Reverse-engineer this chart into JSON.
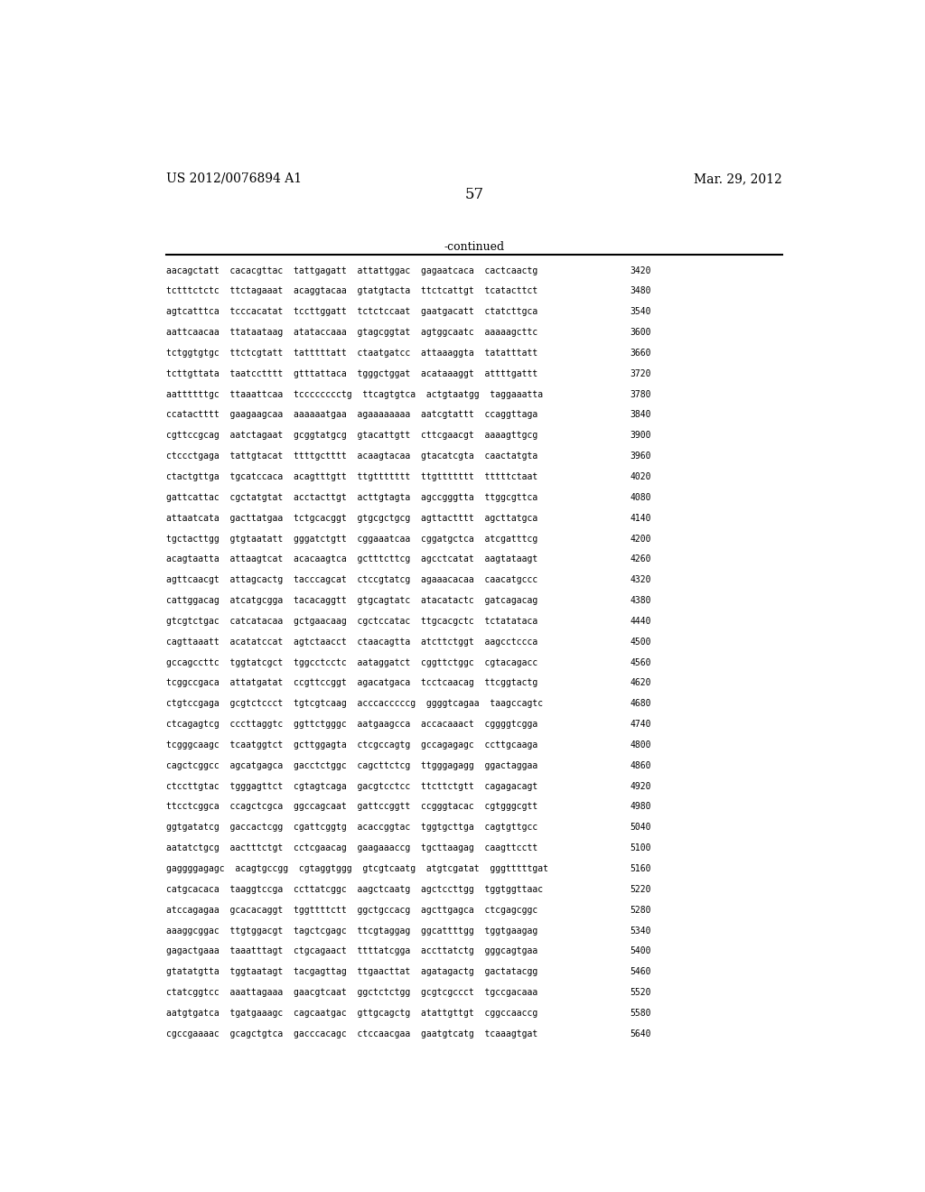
{
  "header_left": "US 2012/0076894 A1",
  "header_right": "Mar. 29, 2012",
  "page_number": "57",
  "continued_label": "-continued",
  "background_color": "#ffffff",
  "text_color": "#000000",
  "sequence_lines": [
    {
      "seq": "aacagctatt  cacacgttac  tattgagatt  attattggac  gagaatcaca  cactcaactg",
      "num": "3420"
    },
    {
      "seq": "tctttctctc  ttctagaaat  acaggtacaa  gtatgtacta  ttctcattgt  tcatacttct",
      "num": "3480"
    },
    {
      "seq": "agtcatttca  tcccacatat  tccttggatt  tctctccaat  gaatgacatt  ctatcttgca",
      "num": "3540"
    },
    {
      "seq": "aattcaacaa  ttataataag  atataccaaa  gtagcggtat  agtggcaatc  aaaaagcttc",
      "num": "3600"
    },
    {
      "seq": "tctggtgtgc  ttctcgtatt  tatttttatt  ctaatgatcc  attaaaggta  tatatttatt",
      "num": "3660"
    },
    {
      "seq": "tcttgttata  taatcctttt  gtttattaca  tgggctggat  acataaaggt  attttgattt",
      "num": "3720"
    },
    {
      "seq": "aattttttgc  ttaaattcaa  tcccccccctg  ttcagtgtca  actgtaatgg  taggaaatta",
      "num": "3780"
    },
    {
      "seq": "ccatactttt  gaagaagcaa  aaaaaatgaa  agaaaaaaaa  aatcgtattt  ccaggttaga",
      "num": "3840"
    },
    {
      "seq": "cgttccgcag  aatctagaat  gcggtatgcg  gtacattgtt  cttcgaacgt  aaaagttgcg",
      "num": "3900"
    },
    {
      "seq": "ctccctgaga  tattgtacat  ttttgctttt  acaagtacaa  gtacatcgta  caactatgta",
      "num": "3960"
    },
    {
      "seq": "ctactgttga  tgcatccaca  acagtttgtt  ttgttttttt  ttgttttttt  tttttctaat",
      "num": "4020"
    },
    {
      "seq": "gattcattac  cgctatgtat  acctacttgt  acttgtagta  agccgggtta  ttggcgttca",
      "num": "4080"
    },
    {
      "seq": "attaatcata  gacttatgaa  tctgcacggt  gtgcgctgcg  agttactttt  agcttatgca",
      "num": "4140"
    },
    {
      "seq": "tgctacttgg  gtgtaatatt  gggatctgtt  cggaaatcaa  cggatgctca  atcgatttcg",
      "num": "4200"
    },
    {
      "seq": "acagtaatta  attaagtcat  acacaagtca  gctttcttcg  agcctcatat  aagtataagt",
      "num": "4260"
    },
    {
      "seq": "agttcaacgt  attagcactg  tacccagcat  ctccgtatcg  agaaacacaa  caacatgccc",
      "num": "4320"
    },
    {
      "seq": "cattggacag  atcatgcgga  tacacaggtt  gtgcagtatc  atacatactc  gatcagacag",
      "num": "4380"
    },
    {
      "seq": "gtcgtctgac  catcatacaa  gctgaacaag  cgctccatac  ttgcacgctc  tctatataca",
      "num": "4440"
    },
    {
      "seq": "cagttaaatt  acatatccat  agtctaacct  ctaacagtta  atcttctggt  aagcctccca",
      "num": "4500"
    },
    {
      "seq": "gccagccttc  tggtatcgct  tggcctcctc  aataggatct  cggttctggc  cgtacagacc",
      "num": "4560"
    },
    {
      "seq": "tcggccgaca  attatgatat  ccgttccggt  agacatgaca  tcctcaacag  ttcggtactg",
      "num": "4620"
    },
    {
      "seq": "ctgtccgaga  gcgtctccct  tgtcgtcaag  acccacccccg  ggggtcagaa  taagccagtc",
      "num": "4680"
    },
    {
      "seq": "ctcagagtcg  cccttaggtc  ggttctgggc  aatgaagcca  accacaaact  cggggtcgga",
      "num": "4740"
    },
    {
      "seq": "tcgggcaagc  tcaatggtct  gcttggagta  ctcgccagtg  gccagagagc  ccttgcaaga",
      "num": "4800"
    },
    {
      "seq": "cagctcggcc  agcatgagca  gacctctggc  cagcttctcg  ttgggagagg  ggactaggaa",
      "num": "4860"
    },
    {
      "seq": "ctccttgtac  tgggagttct  cgtagtcaga  gacgtcctcc  ttcttctgtt  cagagacagt",
      "num": "4920"
    },
    {
      "seq": "ttcctcggca  ccagctcgca  ggccagcaat  gattccggtt  ccgggtacac  cgtgggcgtt",
      "num": "4980"
    },
    {
      "seq": "ggtgatatcg  gaccactcgg  cgattcggtg  acaccggtac  tggtgcttga  cagtgttgcc",
      "num": "5040"
    },
    {
      "seq": "aatatctgcg  aactttctgt  cctcgaacag  gaagaaaccg  tgcttaagag  caagttcctt",
      "num": "5100"
    },
    {
      "seq": "gaggggagagc  acagtgccgg  cgtaggtggg  gtcgtcaatg  atgtcgatat  gggtttttgat",
      "num": "5160"
    },
    {
      "seq": "catgcacaca  taaggtccga  ccttatcggc  aagctcaatg  agctccttgg  tggtggttaac",
      "num": "5220"
    },
    {
      "seq": "atccagagaa  gcacacaggt  tggttttctt  ggctgccacg  agcttgagca  ctcgagcggc",
      "num": "5280"
    },
    {
      "seq": "aaaggcggac  ttgtggacgt  tagctcgagc  ttcgtaggag  ggcattttgg  tggtgaagag",
      "num": "5340"
    },
    {
      "seq": "gagactgaaa  taaatttagt  ctgcagaact  ttttatcgga  accttatctg  gggcagtgaa",
      "num": "5400"
    },
    {
      "seq": "gtatatgtta  tggtaatagt  tacgagttag  ttgaacttat  agatagactg  gactatacgg",
      "num": "5460"
    },
    {
      "seq": "ctatcggtcc  aaattagaaa  gaacgtcaat  ggctctctgg  gcgtcgccct  tgccgacaaa",
      "num": "5520"
    },
    {
      "seq": "aatgtgatca  tgatgaaagc  cagcaatgac  gttgcagctg  atattgttgt  cggccaaccg",
      "num": "5580"
    },
    {
      "seq": "cgccgaaaac  gcagctgtca  gacccacagc  ctccaacgaa  gaatgtcatg  tcaaagtgat",
      "num": "5640"
    }
  ]
}
